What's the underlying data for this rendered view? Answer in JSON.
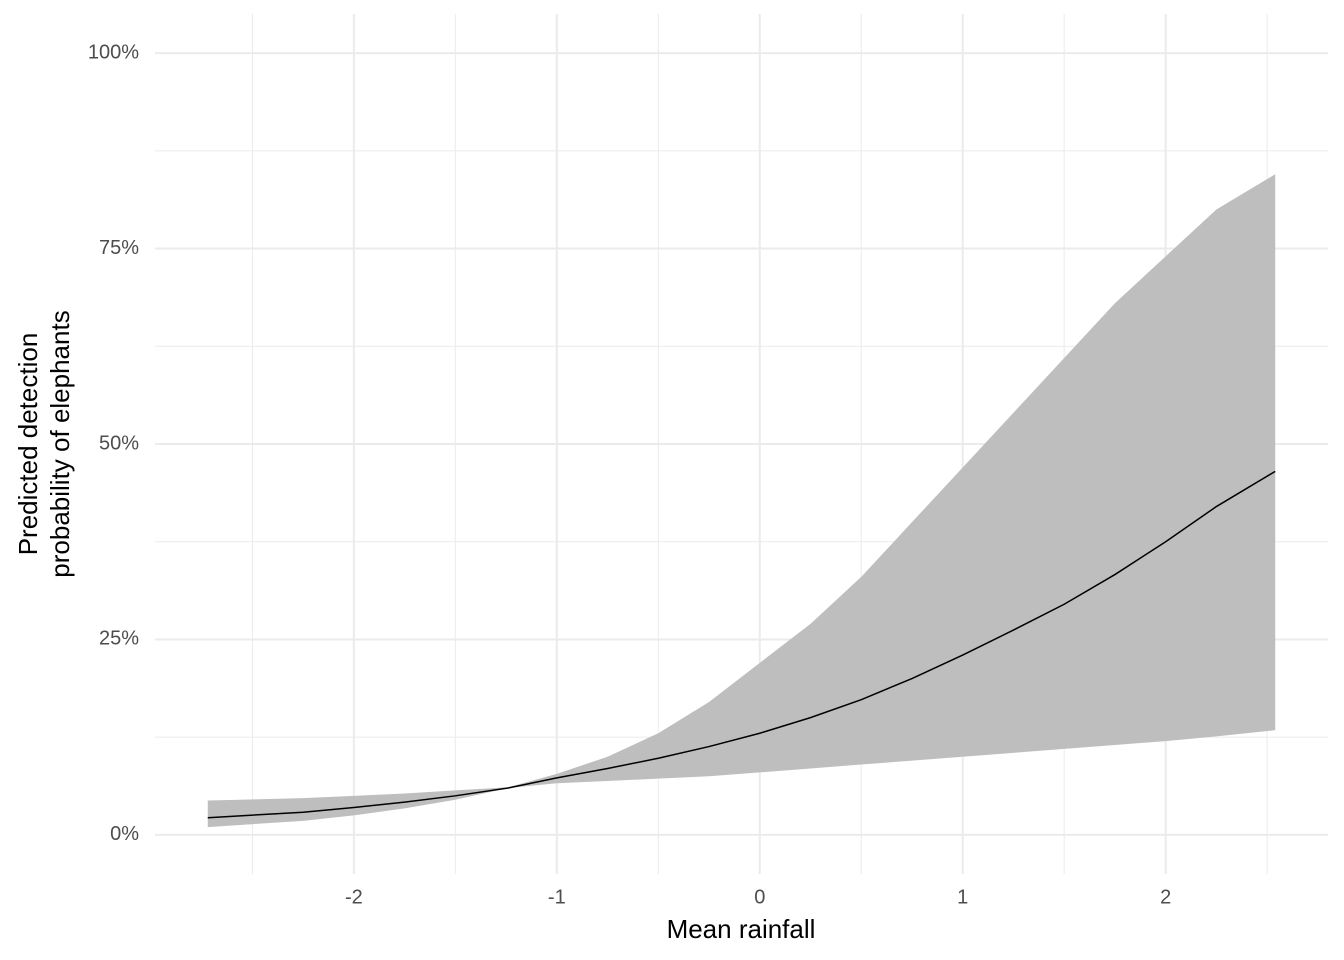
{
  "chart_data": {
    "type": "ribbon-line",
    "x_label": "Mean rainfall",
    "y_label": [
      "Predicted detection",
      "probability of elephants"
    ],
    "x": [
      -2.72,
      -2.25,
      -2,
      -1.75,
      -1.5,
      -1.24,
      -1,
      -0.75,
      -0.5,
      -0.25,
      0,
      0.25,
      0.5,
      0.75,
      1,
      1.25,
      1.5,
      1.75,
      2,
      2.25,
      2.54
    ],
    "values": [
      2.2,
      2.9,
      3.5,
      4.2,
      5.0,
      6.0,
      7.3,
      8.5,
      9.8,
      11.3,
      13,
      15,
      17.3,
      20,
      23,
      26.2,
      29.5,
      33.3,
      37.5,
      42,
      46.5
    ],
    "upper": [
      4.4,
      4.7,
      5.0,
      5.3,
      5.7,
      6.1,
      7.8,
      10,
      13,
      17,
      22,
      27,
      33,
      40,
      47,
      54,
      61,
      68,
      74,
      80,
      84.5
    ],
    "lower": [
      1.0,
      1.8,
      2.5,
      3.4,
      4.5,
      6.0,
      6.6,
      6.9,
      7.2,
      7.5,
      8.0,
      8.5,
      9.0,
      9.5,
      10,
      10.5,
      11.0,
      11.5,
      12.0,
      12.6,
      13.4
    ],
    "color": "#000000",
    "band_color": "#bebebe",
    "xlim": [
      -2.98,
      2.8
    ],
    "ylim": [
      -5,
      105
    ],
    "xticks": [
      -2,
      -1,
      0,
      1,
      2
    ],
    "yticks": [
      {
        "value": 0,
        "label": "0%"
      },
      {
        "value": 25,
        "label": "25%"
      },
      {
        "value": 50,
        "label": "50%"
      },
      {
        "value": 75,
        "label": "75%"
      },
      {
        "value": 100,
        "label": "100%"
      }
    ],
    "x_minor_ticks": [
      -2.5,
      -1.5,
      -0.5,
      0.5,
      1.5,
      2.5
    ],
    "y_minor_ticks": [
      12.5,
      37.5,
      62.5,
      87.5
    ],
    "grid": true
  }
}
